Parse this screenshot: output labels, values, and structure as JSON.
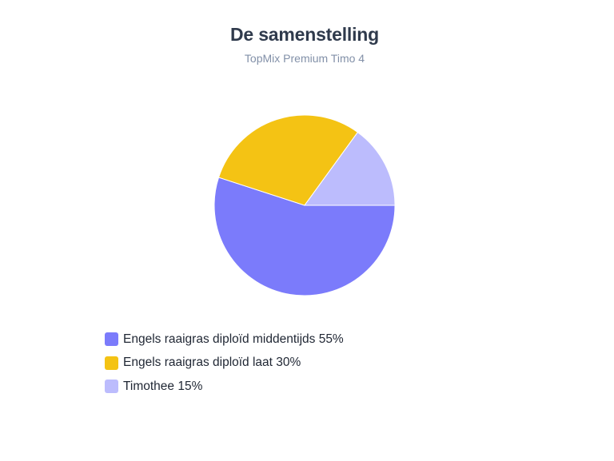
{
  "chart_data": {
    "type": "pie",
    "title": "De samenstelling",
    "subtitle": "TopMix Premium Timo 4",
    "slices": [
      {
        "label": "Engels raaigras diploïd middentijds 55%",
        "value": 55,
        "color": "#7b7bfb"
      },
      {
        "label": "Engels raaigras diploïd laat 30%",
        "value": 30,
        "color": "#f4c314"
      },
      {
        "label": "Timothee 15%",
        "value": 15,
        "color": "#bcbcfd"
      }
    ],
    "legend_position": "bottom-left"
  }
}
